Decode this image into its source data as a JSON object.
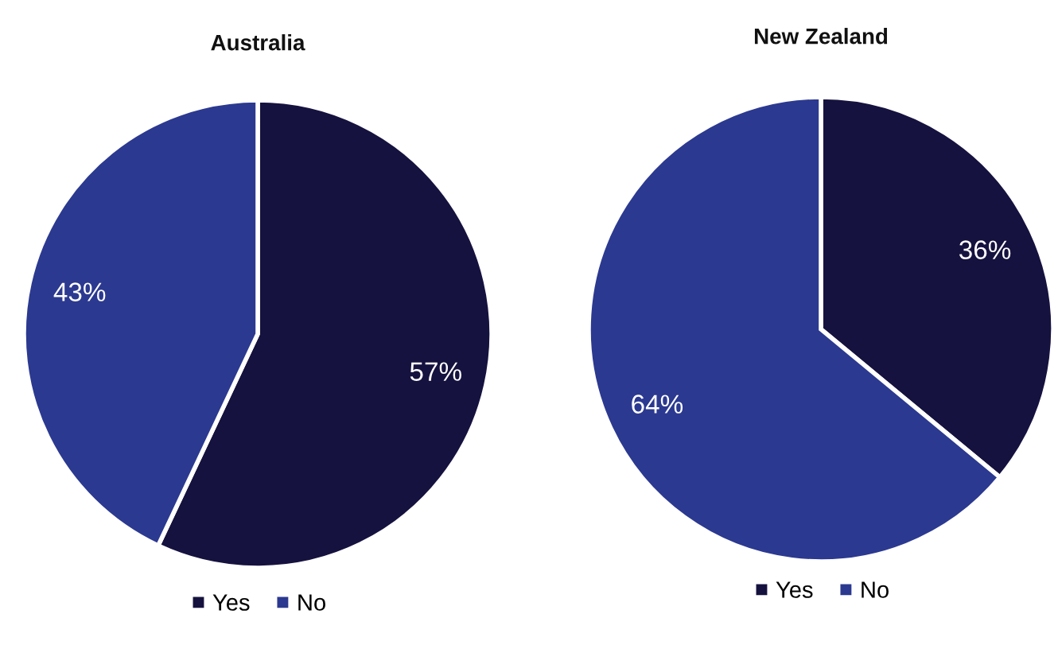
{
  "chart_data": [
    {
      "type": "pie",
      "title": "Australia",
      "categories": [
        "Yes",
        "No"
      ],
      "values": [
        57,
        43
      ],
      "colors": [
        "#16123f",
        "#2b3990"
      ],
      "value_labels": [
        "57%",
        "43%"
      ],
      "legend": "bottom"
    },
    {
      "type": "pie",
      "title": "New Zealand",
      "categories": [
        "Yes",
        "No"
      ],
      "values": [
        36,
        64
      ],
      "colors": [
        "#16123f",
        "#2b3990"
      ],
      "value_labels": [
        "36%",
        "64%"
      ],
      "legend": "bottom"
    }
  ]
}
